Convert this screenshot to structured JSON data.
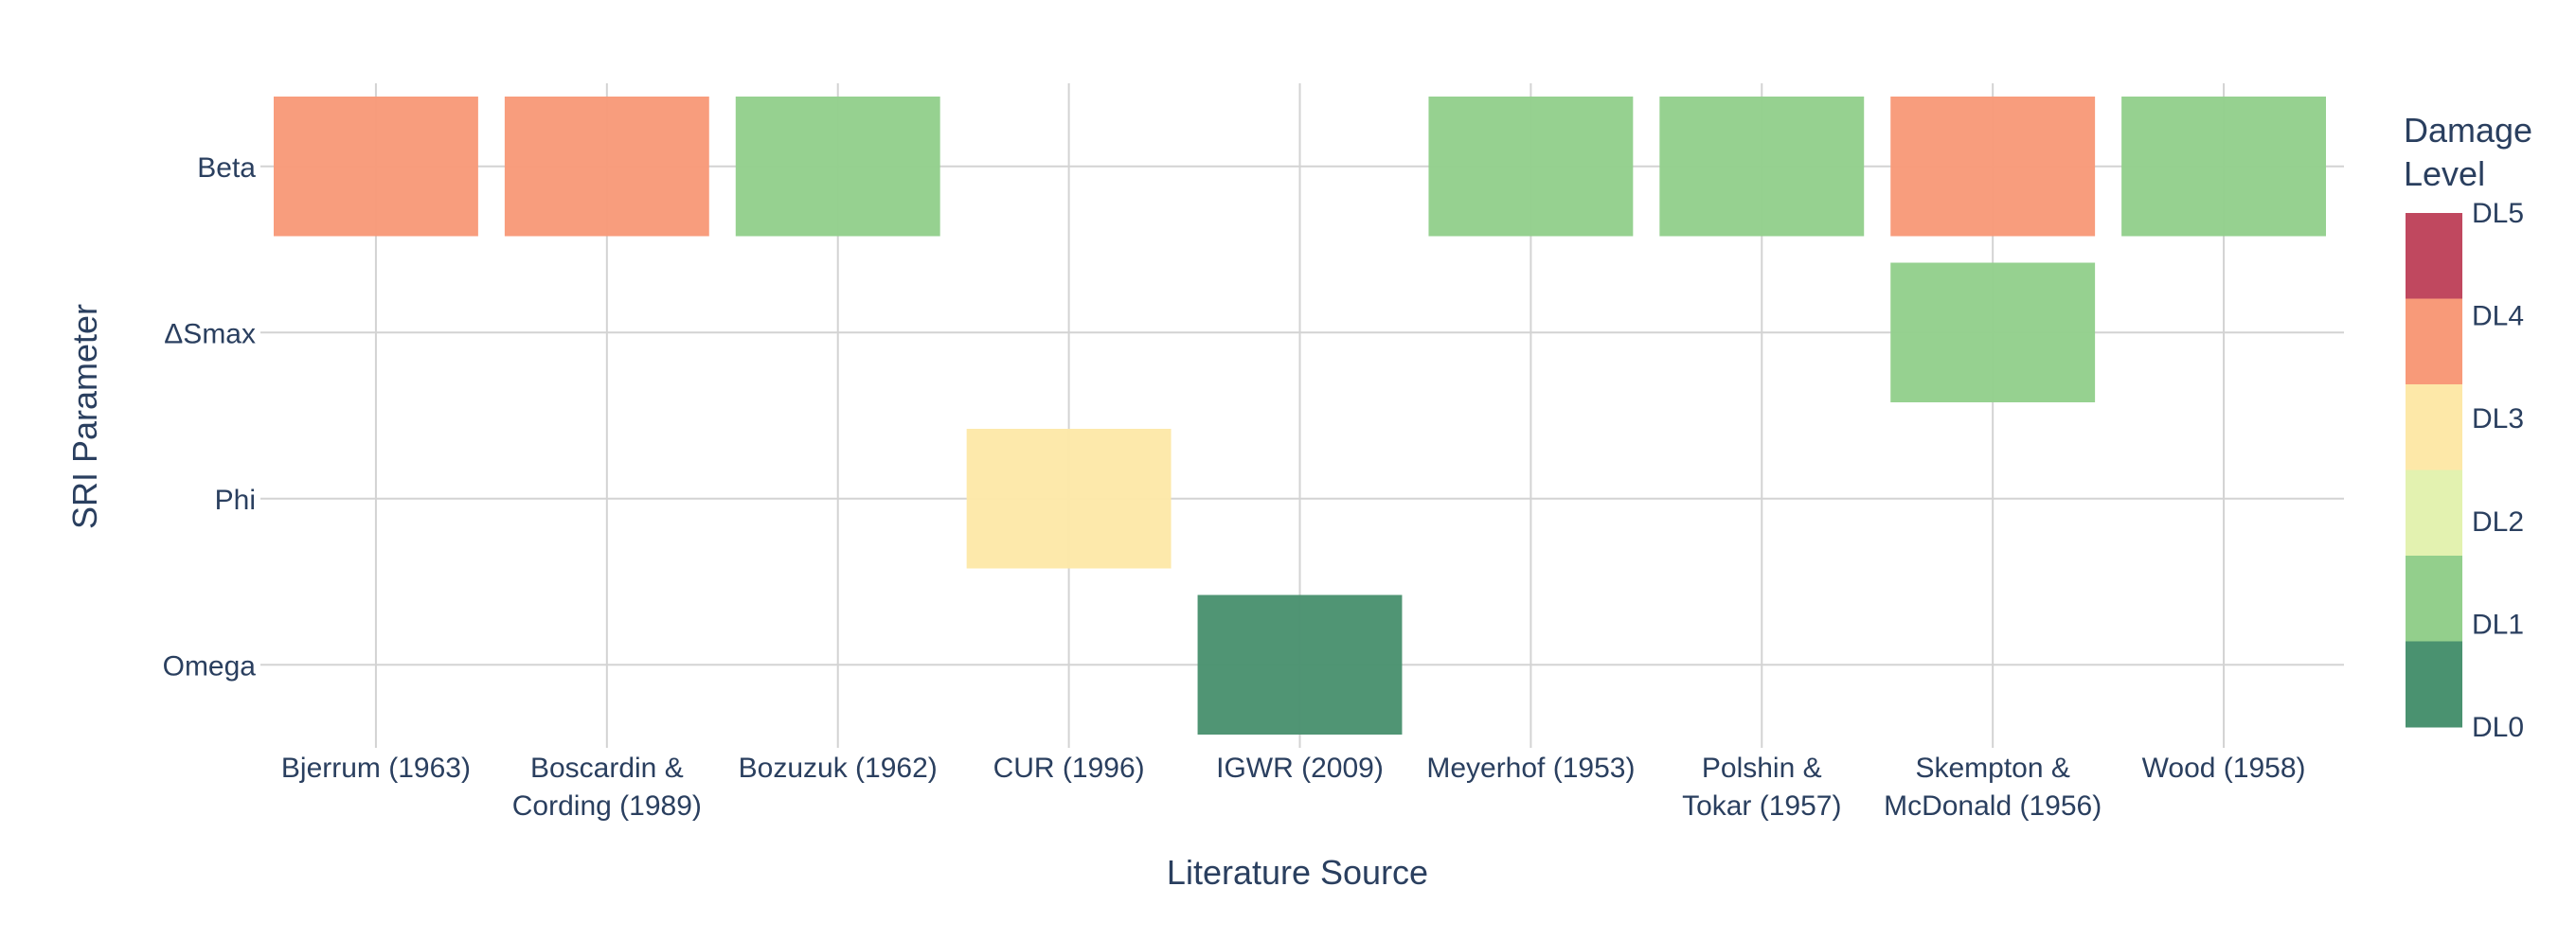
{
  "chart_data": {
    "type": "heatmap",
    "xlabel": "Literature Source",
    "ylabel": "SRI Parameter",
    "x_categories": [
      [
        "Bjerrum (1963)"
      ],
      [
        "Boscardin &",
        "Cording (1989)"
      ],
      [
        "Bozuzuk (1962)"
      ],
      [
        "CUR (1996)"
      ],
      [
        "IGWR (2009)"
      ],
      [
        "Meyerhof (1953)"
      ],
      [
        "Polshin &",
        "Tokar (1957)"
      ],
      [
        "Skempton &",
        "McDonald (1956)"
      ],
      [
        "Wood (1958)"
      ]
    ],
    "y_categories": [
      "Beta",
      "ΔSmax",
      "Phi",
      "Omega"
    ],
    "cells": [
      {
        "x": 0,
        "y": "Beta",
        "level": "DL4"
      },
      {
        "x": 1,
        "y": "Beta",
        "level": "DL4"
      },
      {
        "x": 2,
        "y": "Beta",
        "level": "DL1"
      },
      {
        "x": 5,
        "y": "Beta",
        "level": "DL1"
      },
      {
        "x": 6,
        "y": "Beta",
        "level": "DL1"
      },
      {
        "x": 7,
        "y": "Beta",
        "level": "DL4"
      },
      {
        "x": 8,
        "y": "Beta",
        "level": "DL1"
      },
      {
        "x": 7,
        "y": "ΔSmax",
        "level": "DL1"
      },
      {
        "x": 3,
        "y": "Phi",
        "level": "DL3"
      },
      {
        "x": 4,
        "y": "Omega",
        "level": "DL0"
      }
    ],
    "colorbar": {
      "title": [
        "Damage",
        "Level"
      ],
      "levels": [
        "DL5",
        "DL4",
        "DL3",
        "DL2",
        "DL1",
        "DL0"
      ],
      "colors": {
        "DL5": "#c0485f",
        "DL4": "#f89a79",
        "DL3": "#fde8a8",
        "DL2": "#e3f2b0",
        "DL1": "#93cf8c",
        "DL0": "#4a9270"
      }
    },
    "grid": true
  }
}
